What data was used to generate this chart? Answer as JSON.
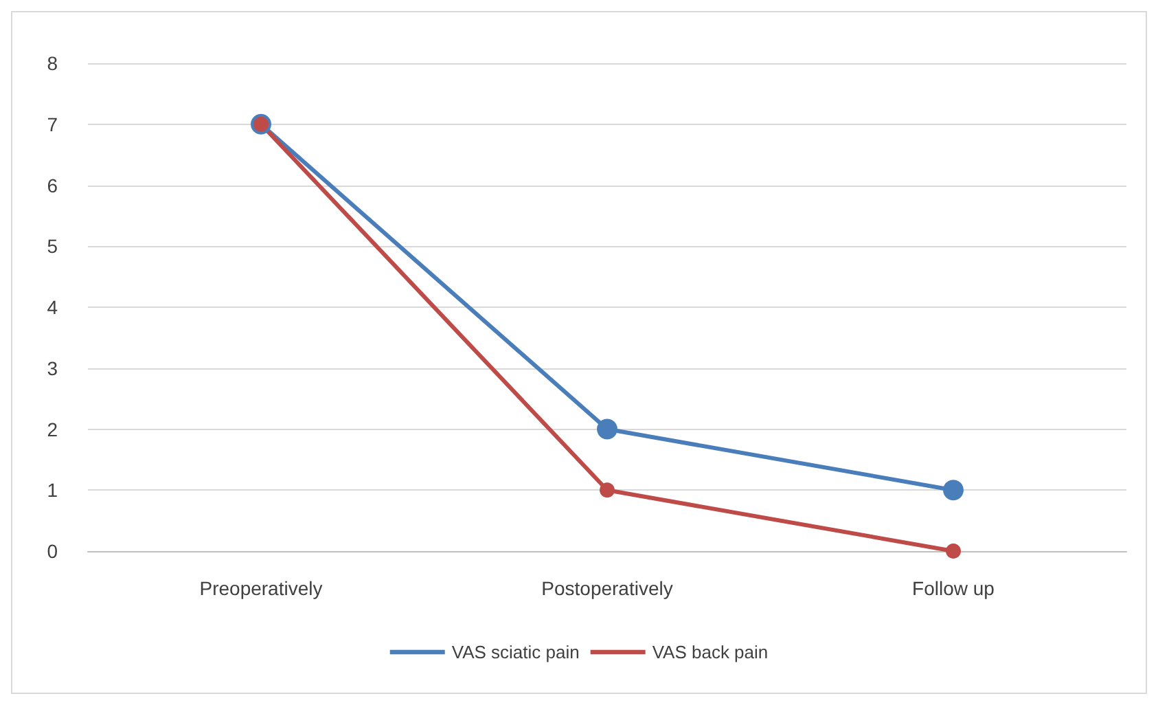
{
  "chart_data": {
    "type": "line",
    "categories": [
      "Preoperatively",
      "Postoperatively",
      "Follow up"
    ],
    "series": [
      {
        "name": "VAS sciatic pain",
        "color": "#4a7ebb",
        "values": [
          7,
          2,
          1
        ]
      },
      {
        "name": "VAS back pain",
        "color": "#be4b48",
        "values": [
          7,
          1,
          0
        ]
      }
    ],
    "ylim": [
      0,
      8
    ],
    "yticks": [
      0,
      1,
      2,
      3,
      4,
      5,
      6,
      7,
      8
    ],
    "grid": "y",
    "legend": "bottom",
    "marker": "circle",
    "line_style": "solid"
  }
}
